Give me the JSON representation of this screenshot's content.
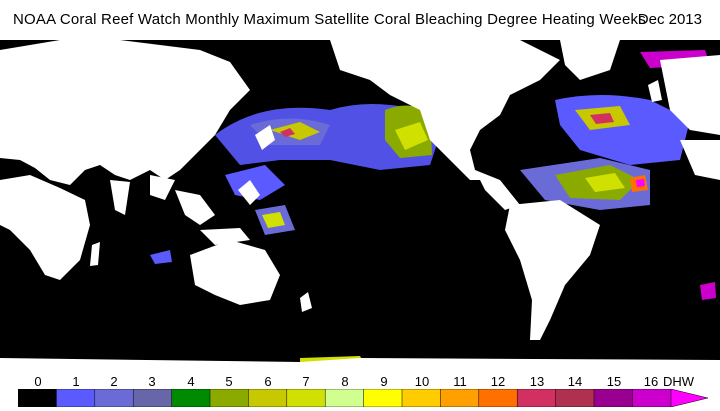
{
  "header": {
    "title": "NOAA Coral Reef Watch Monthly Maximum Satellite Coral Bleaching Degree Heating Weeks",
    "date": "Dec 2013"
  },
  "legend": {
    "unit": "DHW",
    "labels": [
      "0",
      "1",
      "2",
      "3",
      "4",
      "5",
      "6",
      "7",
      "8",
      "9",
      "10",
      "11",
      "12",
      "13",
      "14",
      "15",
      "16"
    ],
    "colors": [
      "#000000",
      "#5a5aff",
      "#6b6bd8",
      "#6666a8",
      "#008a00",
      "#8aaa00",
      "#c8c800",
      "#d0e000",
      "#d0ff90",
      "#ffff00",
      "#ffcc00",
      "#ffa000",
      "#ff7000",
      "#d23060",
      "#b03050",
      "#9a0090",
      "#cc00cc",
      "#ff00ff"
    ]
  },
  "map": {
    "land_color": "#ffffff",
    "ocean_color": "#000000"
  }
}
